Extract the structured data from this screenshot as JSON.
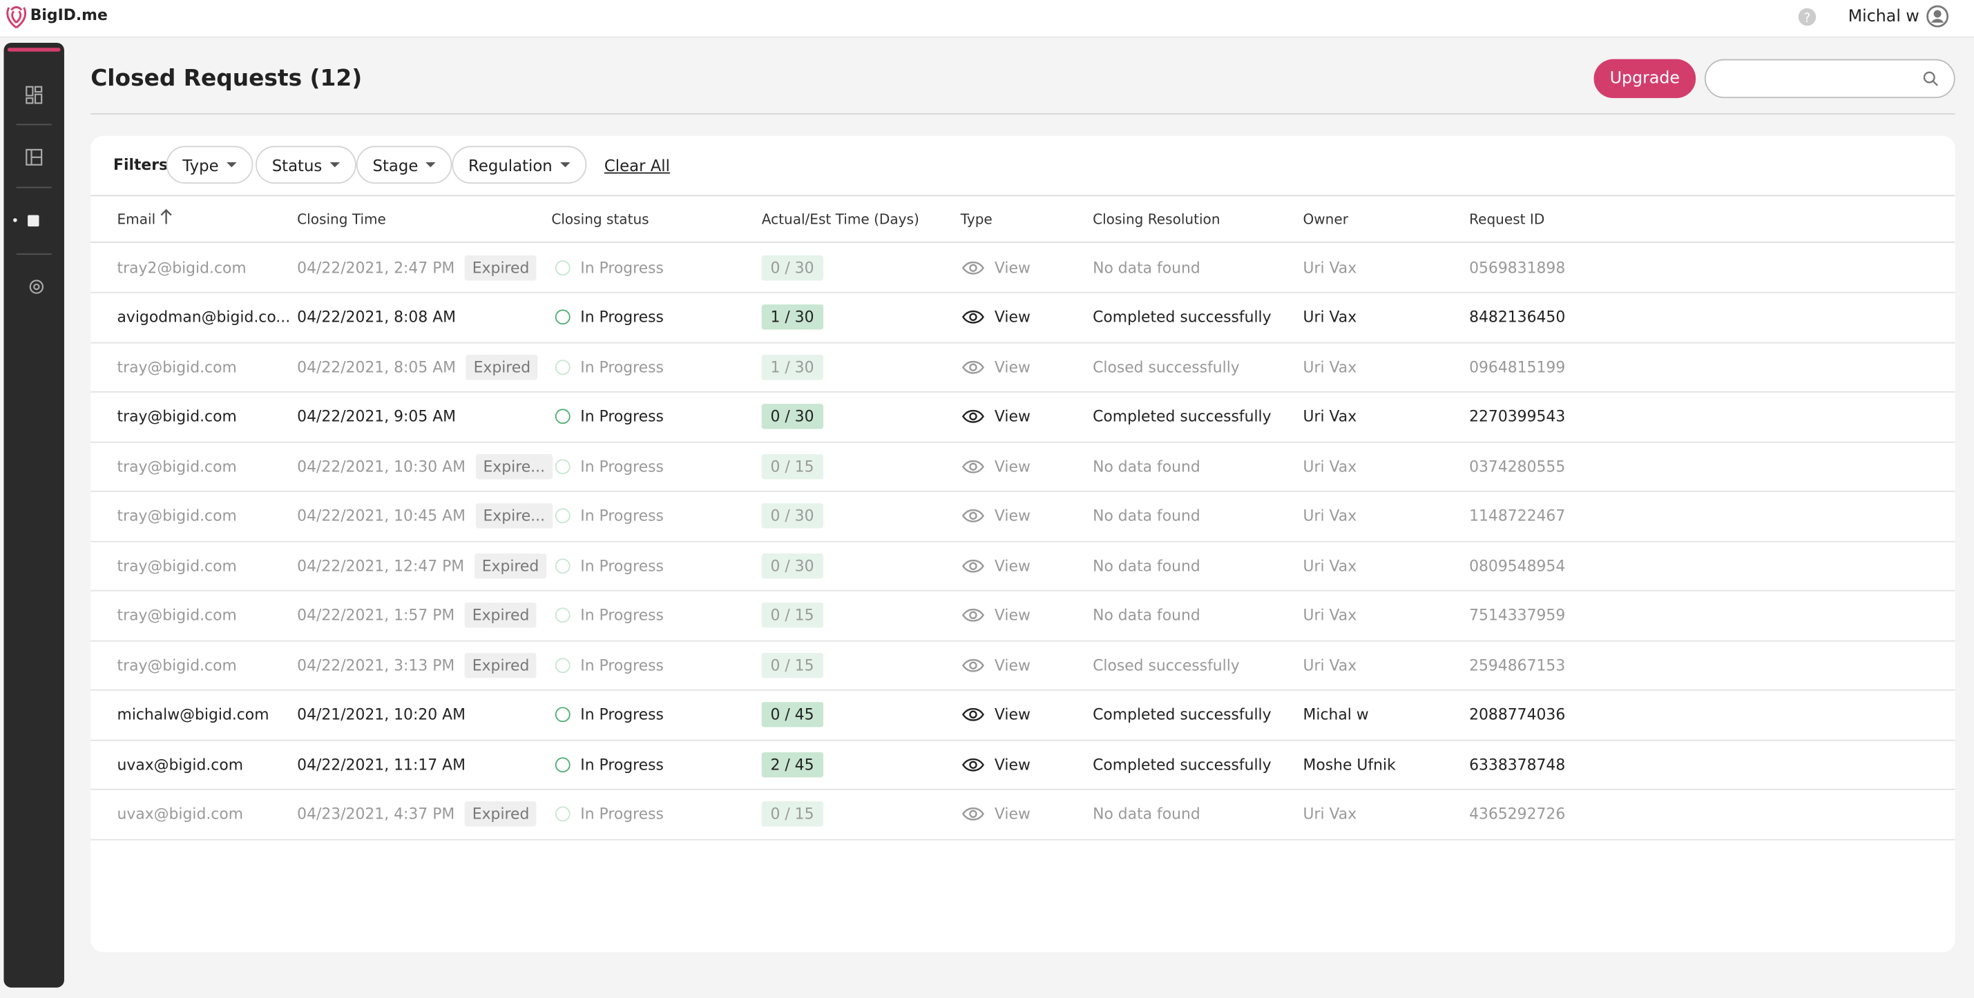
{
  "header": {
    "brand": "BigID.me",
    "user": "Michal w"
  },
  "page": {
    "title": "Closed Requests (12)",
    "upgrade": "Upgrade"
  },
  "filters": {
    "label": "Filters",
    "chips": [
      "Type",
      "Status",
      "Stage",
      "Regulation"
    ],
    "clear": "Clear All"
  },
  "table": {
    "columns": [
      "Email",
      "Closing Time",
      "Closing status",
      "Actual/Est Time (Days)",
      "Type",
      "Closing Resolution",
      "Owner",
      "Request ID"
    ],
    "rows": [
      {
        "email": "tray2@bigid.com",
        "closing_time": "04/22/2021, 2:47 PM",
        "badge": "Expired",
        "status": "In Progress",
        "time": "0 / 30",
        "type": "View",
        "resolution": "No data found",
        "owner": "Uri Vax",
        "request_id": "0569831898"
      },
      {
        "email": "avigodman@bigid.co...",
        "closing_time": "04/22/2021, 8:08 AM",
        "status": "In Progress",
        "time": "1 / 30",
        "type": "View",
        "resolution": "Completed successfully",
        "owner": "Uri Vax",
        "request_id": "8482136450"
      },
      {
        "email": "tray@bigid.com",
        "closing_time": "04/22/2021, 8:05 AM",
        "badge": "Expired",
        "status": "In Progress",
        "time": "1 / 30",
        "type": "View",
        "resolution": "Closed successfully",
        "owner": "Uri Vax",
        "request_id": "0964815199"
      },
      {
        "email": "tray@bigid.com",
        "closing_time": "04/22/2021, 9:05 AM",
        "status": "In Progress",
        "time": "0 / 30",
        "type": "View",
        "resolution": "Completed successfully",
        "owner": "Uri Vax",
        "request_id": "2270399543"
      },
      {
        "email": "tray@bigid.com",
        "closing_time": "04/22/2021, 10:30 AM",
        "badge": "Expire...",
        "status": "In Progress",
        "time": "0 / 15",
        "type": "View",
        "resolution": "No data found",
        "owner": "Uri Vax",
        "request_id": "0374280555"
      },
      {
        "email": "tray@bigid.com",
        "closing_time": "04/22/2021, 10:45 AM",
        "badge": "Expire...",
        "status": "In Progress",
        "time": "0 / 30",
        "type": "View",
        "resolution": "No data found",
        "owner": "Uri Vax",
        "request_id": "1148722467"
      },
      {
        "email": "tray@bigid.com",
        "closing_time": "04/22/2021, 12:47 PM",
        "badge": "Expired",
        "status": "In Progress",
        "time": "0 / 30",
        "type": "View",
        "resolution": "No data found",
        "owner": "Uri Vax",
        "request_id": "0809548954"
      },
      {
        "email": "tray@bigid.com",
        "closing_time": "04/22/2021, 1:57 PM",
        "badge": "Expired",
        "status": "In Progress",
        "time": "0 / 15",
        "type": "View",
        "resolution": "No data found",
        "owner": "Uri Vax",
        "request_id": "7514337959"
      },
      {
        "email": "tray@bigid.com",
        "closing_time": "04/22/2021, 3:13 PM",
        "badge": "Expired",
        "status": "In Progress",
        "time": "0 / 15",
        "type": "View",
        "resolution": "Closed successfully",
        "owner": "Uri Vax",
        "request_id": "2594867153"
      },
      {
        "email": "michalw@bigid.com",
        "closing_time": "04/21/2021, 10:20 AM",
        "status": "In Progress",
        "time": "0 / 45",
        "type": "View",
        "resolution": "Completed successfully",
        "owner": "Michal w",
        "request_id": "2088774036"
      },
      {
        "email": "uvax@bigid.com",
        "closing_time": "04/22/2021, 11:17 AM",
        "status": "In Progress",
        "time": "2 / 45",
        "type": "View",
        "resolution": "Completed successfully",
        "owner": "Moshe Ufnik",
        "request_id": "6338378748"
      },
      {
        "email": "uvax@bigid.com",
        "closing_time": "04/23/2021, 4:37 PM",
        "badge": "Expired",
        "status": "In Progress",
        "time": "0 / 15",
        "type": "View",
        "resolution": "No data found",
        "owner": "Uri Vax",
        "request_id": "4365292726"
      }
    ]
  }
}
